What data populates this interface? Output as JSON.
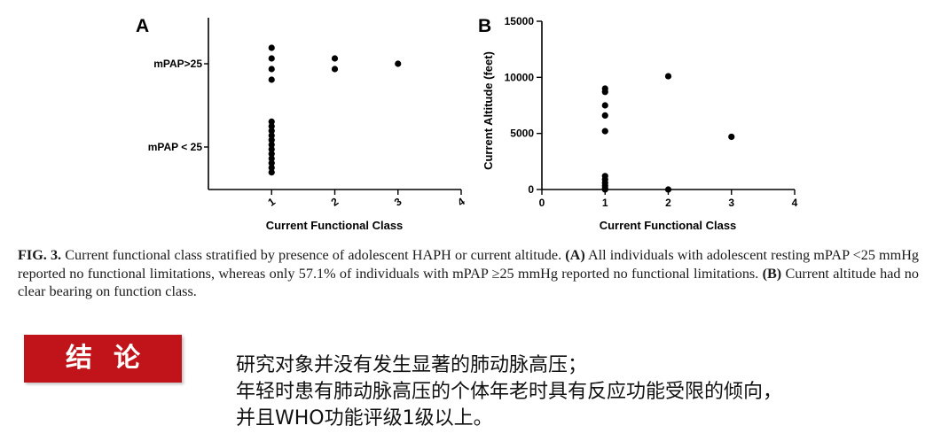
{
  "figure": {
    "panel_a_letter": "A",
    "panel_b_letter": "B"
  },
  "chart_data": [
    {
      "type": "scatter",
      "panel": "A",
      "xlabel": "Current Functional Class",
      "ylabel": "",
      "xlim": [
        0,
        4
      ],
      "xticks": [
        "1",
        "2",
        "3",
        "4"
      ],
      "yticks": [
        "mPAP > 25",
        "mPAP < 25"
      ],
      "ytick_labels": [
        "mPAP>25",
        "mPAP < 25"
      ],
      "points": [
        {
          "x": 1,
          "group": "mPAP > 25",
          "count": 4
        },
        {
          "x": 2,
          "group": "mPAP > 25",
          "count": 2
        },
        {
          "x": 3,
          "group": "mPAP > 25",
          "count": 1
        },
        {
          "x": 1,
          "group": "mPAP < 25",
          "count": 12
        }
      ]
    },
    {
      "type": "scatter",
      "panel": "B",
      "xlabel": "Current Functional Class",
      "ylabel": "Current Altitude (feet)",
      "xlim": [
        0,
        4
      ],
      "ylim": [
        0,
        15000
      ],
      "xticks": [
        "0",
        "1",
        "2",
        "3",
        "4"
      ],
      "yticks": [
        "0",
        "5000",
        "10000",
        "15000"
      ],
      "points": [
        {
          "x": 1,
          "y": 9000
        },
        {
          "x": 1,
          "y": 8700
        },
        {
          "x": 1,
          "y": 7500
        },
        {
          "x": 1,
          "y": 6600
        },
        {
          "x": 1,
          "y": 5200
        },
        {
          "x": 1,
          "y": 1200
        },
        {
          "x": 1,
          "y": 900
        },
        {
          "x": 1,
          "y": 600
        },
        {
          "x": 1,
          "y": 350
        },
        {
          "x": 1,
          "y": 100
        },
        {
          "x": 1,
          "y": 0
        },
        {
          "x": 2,
          "y": 10100
        },
        {
          "x": 2,
          "y": 0
        },
        {
          "x": 3,
          "y": 4700
        }
      ]
    }
  ],
  "caption": {
    "label": "FIG. 3.",
    "text1": " Current functional class stratified by presence of adolescent HAPH or current altitude. ",
    "a_label": "(A)",
    "text2": " All individuals with adolescent resting mPAP <25 mmHg reported no functional limitations, whereas only 57.1% of individuals with mPAP ≥25 mmHg reported no functional limitations. ",
    "b_label": "(B)",
    "text3": " Current altitude had no clear bearing on function class."
  },
  "conclusion": {
    "title": "结论",
    "lines": [
      "研究对象并没有发生显著的肺动脉高压；",
      "年轻时患有肺动脉高压的个体年老时具有反应功能受限的倾向，",
      "并且WHO功能评级1级以上。"
    ]
  }
}
